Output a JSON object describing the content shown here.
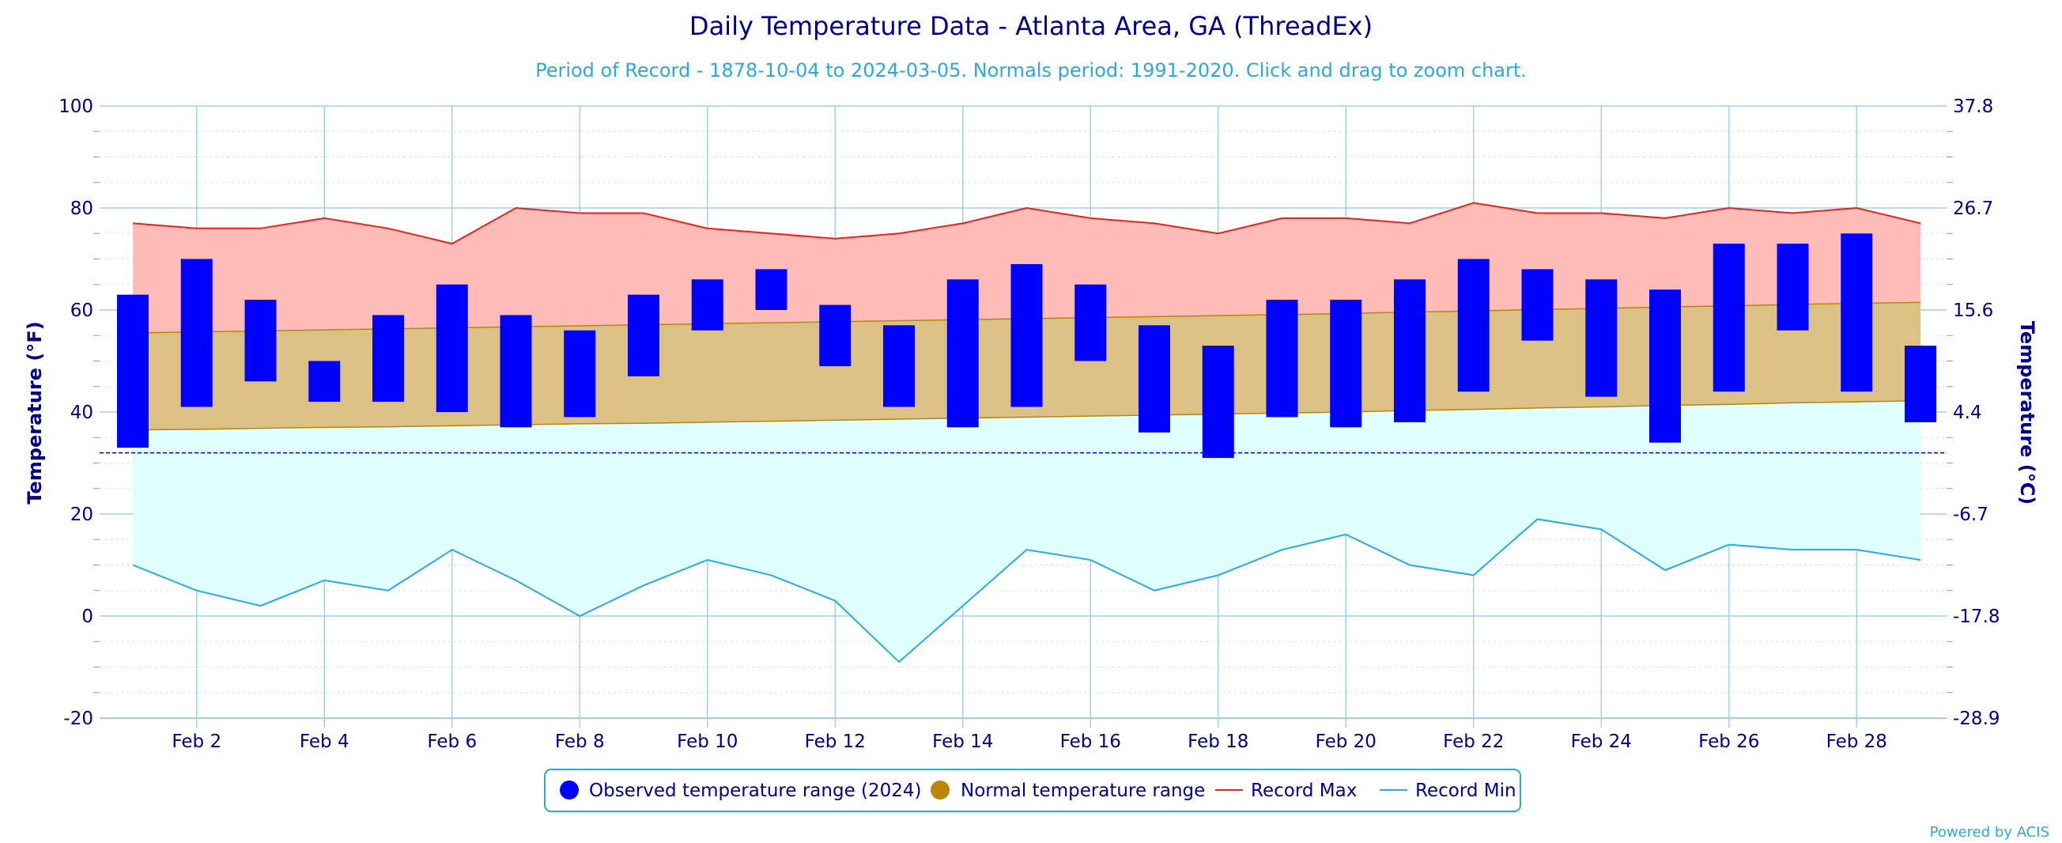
{
  "page": {
    "title": "Daily Temperature Data - Atlanta Area, GA (ThreadEx)",
    "subtitle": "Period of Record - 1878-10-04 to 2024-03-05. Normals period: 1991-2020. Click and drag to zoom chart.",
    "credit": "Powered by ACIS"
  },
  "colors": {
    "observed": "#0000ff",
    "normal_fill": "#dcc186",
    "normal_line": "#b8860b",
    "record_max_fill": "#fdbcb8",
    "record_max_line": "#e8231c",
    "record_min_fill": "#e0ffff",
    "record_min_line": "#2ba8e8",
    "grid": "#9fd1f0",
    "freezing_line": "#0000cc"
  },
  "legend": {
    "observed": "Observed temperature range (2024)",
    "normal": "Normal temperature range",
    "record_max": "Record Max",
    "record_min": "Record Min"
  },
  "chart_data": {
    "type": "bar",
    "title": "Daily Temperature Data - Atlanta Area, GA (ThreadEx)",
    "subtitle": "Period of Record - 1878-10-04 to 2024-03-05. Normals period: 1991-2020. Click and drag to zoom chart.",
    "ylabel": "Temperature (°F)",
    "y2label": "Temperature (°C)",
    "ylim": [
      -20,
      100
    ],
    "yticks": [
      -20,
      0,
      20,
      40,
      60,
      80,
      100
    ],
    "y2ticks": [
      "-28.9",
      "-17.8",
      "-6.7",
      "4.4",
      "15.6",
      "26.7",
      "37.8"
    ],
    "freezing_line": 32,
    "grid": true,
    "legend_position": "bottom-center",
    "x_tick_labels": [
      {
        "day": 2,
        "label": "Feb 2"
      },
      {
        "day": 4,
        "label": "Feb 4"
      },
      {
        "day": 6,
        "label": "Feb 6"
      },
      {
        "day": 8,
        "label": "Feb 8"
      },
      {
        "day": 10,
        "label": "Feb 10"
      },
      {
        "day": 12,
        "label": "Feb 12"
      },
      {
        "day": 14,
        "label": "Feb 14"
      },
      {
        "day": 16,
        "label": "Feb 16"
      },
      {
        "day": 18,
        "label": "Feb 18"
      },
      {
        "day": 20,
        "label": "Feb 20"
      },
      {
        "day": 22,
        "label": "Feb 22"
      },
      {
        "day": 24,
        "label": "Feb 24"
      },
      {
        "day": 26,
        "label": "Feb 26"
      },
      {
        "day": 28,
        "label": "Feb 28"
      }
    ],
    "days": [
      1,
      2,
      3,
      4,
      5,
      6,
      7,
      8,
      9,
      10,
      11,
      12,
      13,
      14,
      15,
      16,
      17,
      18,
      19,
      20,
      21,
      22,
      23,
      24,
      25,
      26,
      27,
      28,
      29
    ],
    "series": [
      {
        "name": "Observed temperature range (2024)",
        "low": [
          33,
          41,
          46,
          42,
          42,
          40,
          37,
          39,
          47,
          56,
          60,
          49,
          41,
          37,
          41,
          50,
          36,
          31,
          39,
          37,
          38,
          44,
          54,
          43,
          34,
          44,
          56,
          44,
          38
        ],
        "high": [
          63,
          70,
          62,
          50,
          59,
          65,
          59,
          56,
          63,
          66,
          68,
          61,
          57,
          66,
          69,
          65,
          57,
          53,
          62,
          62,
          66,
          70,
          68,
          66,
          64,
          73,
          73,
          75,
          53
        ]
      },
      {
        "name": "Normal temperature range",
        "low": [
          36.5,
          36.6,
          36.8,
          37.0,
          37.1,
          37.3,
          37.5,
          37.7,
          37.8,
          38.0,
          38.2,
          38.4,
          38.6,
          38.8,
          39.0,
          39.2,
          39.4,
          39.6,
          39.8,
          40.0,
          40.3,
          40.5,
          40.8,
          41.0,
          41.3,
          41.5,
          41.8,
          42.0,
          42.2
        ],
        "high": [
          55.5,
          55.7,
          55.9,
          56.1,
          56.3,
          56.5,
          56.7,
          56.9,
          57.1,
          57.3,
          57.5,
          57.7,
          57.9,
          58.1,
          58.3,
          58.5,
          58.7,
          58.9,
          59.1,
          59.3,
          59.6,
          59.8,
          60.1,
          60.3,
          60.6,
          60.8,
          61.1,
          61.3,
          61.5
        ]
      },
      {
        "name": "Record Max",
        "values": [
          77,
          76,
          76,
          78,
          76,
          73,
          80,
          79,
          79,
          76,
          75,
          74,
          75,
          77,
          80,
          78,
          77,
          75,
          78,
          78,
          77,
          81,
          79,
          79,
          78,
          80,
          79,
          80,
          77
        ]
      },
      {
        "name": "Record Min",
        "values": [
          10,
          5,
          2,
          7,
          5,
          13,
          7,
          0,
          6,
          11,
          8,
          3,
          -9,
          2,
          13,
          11,
          5,
          8,
          13,
          16,
          10,
          8,
          19,
          17,
          9,
          14,
          13,
          13,
          11
        ]
      }
    ]
  }
}
